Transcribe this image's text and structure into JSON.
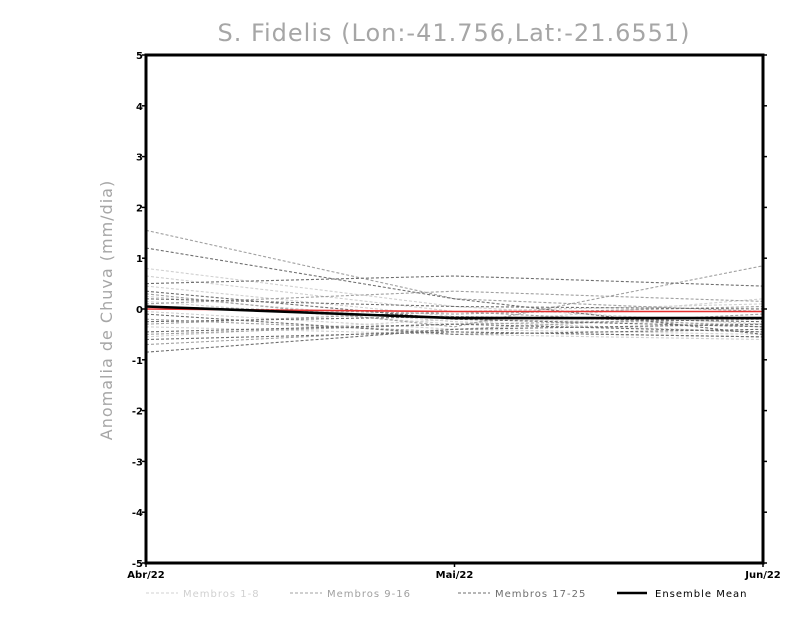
{
  "chart_data": {
    "type": "line",
    "title": "S. Fidelis (Lon:-41.756,Lat:-21.6551)",
    "ylabel": "Anomalia de Chuva (mm/dia)",
    "xlabel": "",
    "categories": [
      "Abr/22",
      "Mai/22",
      "Jun/22"
    ],
    "ylim": [
      -5,
      5
    ],
    "yticks": [
      "5",
      "4",
      "3",
      "2",
      "1",
      "0",
      "-1",
      "-2",
      "-3",
      "-4",
      "-5"
    ],
    "grid": false,
    "legend_position": "bottom",
    "colors": {
      "members_1_8": "#d0d0d0",
      "members_9_16": "#a0a0a0",
      "members_17_25": "#6e6e6e",
      "ensemble_mean": "#000000",
      "observed": "#e63030",
      "title": "#a6a6a6"
    },
    "legend": [
      {
        "key": "members_1_8",
        "label": "Membros 1-8"
      },
      {
        "key": "members_9_16",
        "label": "Membros 9-16"
      },
      {
        "key": "members_17_25",
        "label": "Membros 17-25"
      },
      {
        "key": "ensemble_mean",
        "label": "Ensemble Mean"
      }
    ],
    "series": [
      {
        "group": "members_1_8",
        "values": [
          0.8,
          0.05,
          -0.3
        ]
      },
      {
        "group": "members_1_8",
        "values": [
          0.65,
          -0.05,
          0.1
        ]
      },
      {
        "group": "members_1_8",
        "values": [
          0.45,
          -0.15,
          -0.2
        ]
      },
      {
        "group": "members_1_8",
        "values": [
          0.25,
          -0.25,
          -0.45
        ]
      },
      {
        "group": "members_1_8",
        "values": [
          0.15,
          -0.3,
          0.2
        ]
      },
      {
        "group": "members_1_8",
        "values": [
          -0.05,
          -0.4,
          -0.5
        ]
      },
      {
        "group": "members_1_8",
        "values": [
          -0.35,
          -0.5,
          -0.6
        ]
      },
      {
        "group": "members_1_8",
        "values": [
          -0.55,
          -0.2,
          -0.3
        ]
      },
      {
        "group": "members_9_16",
        "values": [
          1.55,
          0.2,
          -0.05
        ]
      },
      {
        "group": "members_9_16",
        "values": [
          0.3,
          -0.35,
          0.85
        ]
      },
      {
        "group": "members_9_16",
        "values": [
          0.1,
          0.35,
          0.15
        ]
      },
      {
        "group": "members_9_16",
        "values": [
          0.05,
          -0.1,
          0.05
        ]
      },
      {
        "group": "members_9_16",
        "values": [
          -0.2,
          -0.45,
          -0.55
        ]
      },
      {
        "group": "members_9_16",
        "values": [
          -0.3,
          -0.05,
          -0.35
        ]
      },
      {
        "group": "members_9_16",
        "values": [
          -0.5,
          -0.3,
          -0.2
        ]
      },
      {
        "group": "members_9_16",
        "values": [
          -0.7,
          -0.4,
          -0.1
        ]
      },
      {
        "group": "members_17_25",
        "values": [
          1.2,
          0.2,
          -0.5
        ]
      },
      {
        "group": "members_17_25",
        "values": [
          0.5,
          0.65,
          0.45
        ]
      },
      {
        "group": "members_17_25",
        "values": [
          0.35,
          -0.2,
          -0.35
        ]
      },
      {
        "group": "members_17_25",
        "values": [
          0.2,
          0.05,
          0.0
        ]
      },
      {
        "group": "members_17_25",
        "values": [
          -0.1,
          -0.5,
          -0.4
        ]
      },
      {
        "group": "members_17_25",
        "values": [
          -0.25,
          -0.15,
          -0.25
        ]
      },
      {
        "group": "members_17_25",
        "values": [
          -0.45,
          -0.3,
          -0.45
        ]
      },
      {
        "group": "members_17_25",
        "values": [
          -0.6,
          -0.45,
          -0.55
        ]
      },
      {
        "group": "members_17_25",
        "values": [
          -0.85,
          -0.4,
          -0.3
        ]
      },
      {
        "group": "observed",
        "values": [
          0.0,
          -0.05,
          -0.05
        ]
      },
      {
        "group": "ensemble_mean",
        "values": [
          0.05,
          -0.18,
          -0.18
        ]
      }
    ]
  }
}
